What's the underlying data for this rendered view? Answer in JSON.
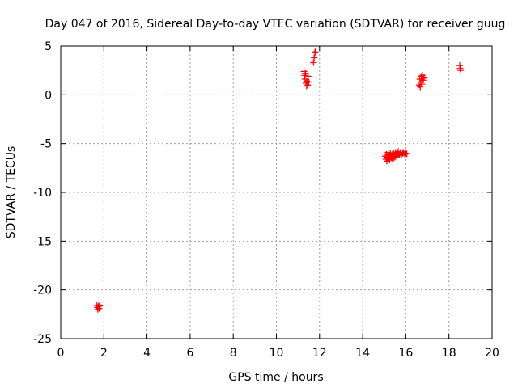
{
  "chart_data": {
    "type": "scatter",
    "title": "Day 047 of 2016, Sidereal Day-to-day VTEC variation (SDTVAR) for receiver guug",
    "xlabel": "GPS time / hours",
    "ylabel": "SDTVAR / TECUs",
    "xlim": [
      0,
      20
    ],
    "ylim": [
      -25,
      5
    ],
    "xticks": [
      0,
      2,
      4,
      6,
      8,
      10,
      12,
      14,
      16,
      18,
      20
    ],
    "yticks": [
      -25,
      -20,
      -15,
      -10,
      -5,
      0,
      5
    ],
    "grid": true,
    "marker": "+",
    "color": "#ff0000",
    "series": [
      {
        "name": "SDTVAR",
        "points": [
          [
            1.68,
            -21.6
          ],
          [
            1.7,
            -21.8
          ],
          [
            1.72,
            -22.0
          ],
          [
            1.75,
            -21.7
          ],
          [
            1.78,
            -21.9
          ],
          [
            1.8,
            -21.55
          ],
          [
            11.28,
            2.4
          ],
          [
            11.3,
            2.0
          ],
          [
            11.33,
            1.6
          ],
          [
            11.35,
            2.2
          ],
          [
            11.37,
            1.2
          ],
          [
            11.4,
            0.9
          ],
          [
            11.42,
            1.4
          ],
          [
            11.45,
            1.0
          ],
          [
            11.47,
            1.9
          ],
          [
            11.5,
            1.3
          ],
          [
            11.72,
            3.3
          ],
          [
            11.75,
            3.8
          ],
          [
            11.78,
            4.3
          ],
          [
            11.8,
            4.4
          ],
          [
            15.05,
            -6.3
          ],
          [
            15.08,
            -6.6
          ],
          [
            15.1,
            -6.1
          ],
          [
            15.12,
            -6.8
          ],
          [
            15.15,
            -6.4
          ],
          [
            15.18,
            -5.9
          ],
          [
            15.2,
            -6.5
          ],
          [
            15.22,
            -6.2
          ],
          [
            15.25,
            -6.7
          ],
          [
            15.28,
            -6.0
          ],
          [
            15.3,
            -6.4
          ],
          [
            15.33,
            -6.3
          ],
          [
            15.35,
            -6.6
          ],
          [
            15.38,
            -6.1
          ],
          [
            15.4,
            -6.3
          ],
          [
            15.43,
            -6.5
          ],
          [
            15.45,
            -6.0
          ],
          [
            15.48,
            -6.2
          ],
          [
            15.5,
            -6.4
          ],
          [
            15.53,
            -5.9
          ],
          [
            15.55,
            -6.1
          ],
          [
            15.58,
            -6.3
          ],
          [
            15.6,
            -6.0
          ],
          [
            15.63,
            -6.2
          ],
          [
            15.65,
            -5.8
          ],
          [
            15.7,
            -6.1
          ],
          [
            15.75,
            -5.9
          ],
          [
            15.8,
            -6.2
          ],
          [
            15.85,
            -6.0
          ],
          [
            15.9,
            -5.9
          ],
          [
            15.95,
            -6.1
          ],
          [
            16.0,
            -6.0
          ],
          [
            16.05,
            -6.05
          ],
          [
            16.62,
            1.0
          ],
          [
            16.65,
            1.6
          ],
          [
            16.67,
            0.8
          ],
          [
            16.7,
            1.3
          ],
          [
            16.72,
            1.9
          ],
          [
            16.75,
            1.1
          ],
          [
            16.77,
            2.0
          ],
          [
            16.8,
            1.5
          ],
          [
            16.82,
            1.7
          ],
          [
            16.85,
            1.8
          ],
          [
            18.5,
            3.0
          ],
          [
            18.52,
            2.7
          ],
          [
            18.55,
            2.5
          ]
        ]
      }
    ]
  }
}
